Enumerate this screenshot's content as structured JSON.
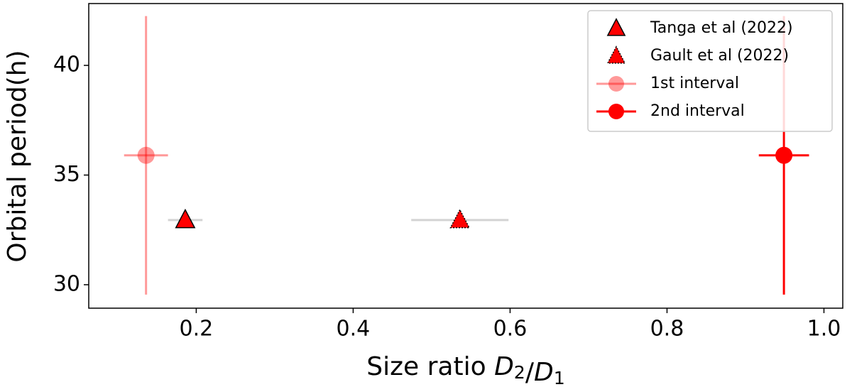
{
  "chart_data": {
    "type": "scatter",
    "x_label": "Size ratio D2/D1",
    "y_label": "Orbital period(h)",
    "xlim": [
      0.063,
      1.024
    ],
    "ylim": [
      28.93,
      42.82
    ],
    "xticks": [
      {
        "value": 0.2,
        "label": "0.2"
      },
      {
        "value": 0.4,
        "label": "0.4"
      },
      {
        "value": 0.6,
        "label": "0.6"
      },
      {
        "value": 0.8,
        "label": "0.8"
      },
      {
        "value": 1.0,
        "label": "1.0"
      }
    ],
    "yticks": [
      30,
      35,
      40
    ],
    "grid": false,
    "legend": "upper right",
    "series": [
      {
        "name": "Tanga et al (2022)",
        "color": "#ff0000",
        "marker": "triangle",
        "edge_style": "solid",
        "ecolor": "#d3d3d3",
        "opacity": 1,
        "x": [
          0.186
        ],
        "values": [
          32.95
        ],
        "xerr": [
          0.022
        ]
      },
      {
        "name": "Gault et al (2022)",
        "color": "#ff0000",
        "marker": "triangle",
        "edge_style": "dotted",
        "ecolor": "#d3d3d3",
        "opacity": 1,
        "x": [
          0.536
        ],
        "values": [
          32.95
        ],
        "xerr": [
          0.062
        ]
      },
      {
        "name": "1st interval",
        "color": "#ff0000",
        "marker": "circle",
        "edge_style": "none",
        "ecolor": "#ff0000",
        "opacity": 0.4,
        "x": [
          0.136
        ],
        "values": [
          35.9
        ],
        "xerr": [
          0.028
        ],
        "yerr": [
          6.35
        ]
      },
      {
        "name": "2nd interval",
        "color": "#ff0000",
        "marker": "circle",
        "edge_style": "none",
        "ecolor": "#ff0000",
        "opacity": 1,
        "x": [
          0.949
        ],
        "values": [
          35.9
        ],
        "xerr": [
          0.032
        ],
        "yerr": [
          6.35
        ]
      }
    ]
  }
}
